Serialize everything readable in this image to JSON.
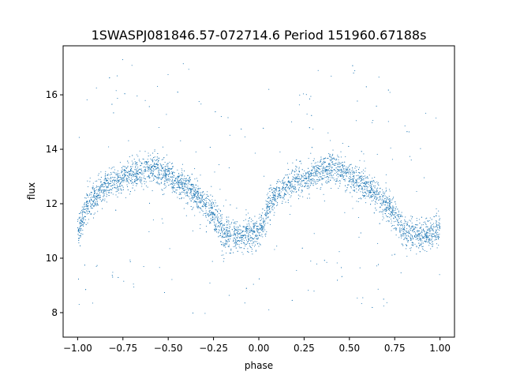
{
  "chart_data": {
    "type": "scatter",
    "title": "1SWASPJ081846.57-072714.6 Period 151960.67188s",
    "xlabel": "phase",
    "ylabel": "flux",
    "xlim": [
      -1.08,
      1.08
    ],
    "ylim": [
      7.1,
      17.8
    ],
    "x_ticks": [
      -1.0,
      -0.75,
      -0.5,
      -0.25,
      0.0,
      0.25,
      0.5,
      0.75,
      1.0
    ],
    "x_tick_labels": [
      "−1.00",
      "−0.75",
      "−0.50",
      "−0.25",
      "0.00",
      "0.25",
      "0.50",
      "0.75",
      "1.00"
    ],
    "y_ticks": [
      8,
      10,
      12,
      14,
      16
    ],
    "y_tick_labels": [
      "8",
      "10",
      "12",
      "14",
      "16"
    ],
    "grid": false,
    "legend": "none",
    "marker_color": "#1f77b4",
    "series": [
      {
        "points_description_free": true,
        "x": [
          -1.0,
          -0.95,
          -0.9,
          -0.85,
          -0.8,
          -0.75,
          -0.7,
          -0.65,
          -0.6,
          -0.55,
          -0.5,
          -0.45,
          -0.4,
          -0.35,
          -0.3,
          -0.25,
          -0.2,
          -0.17,
          -0.15,
          -0.1,
          -0.05,
          0.0,
          0.03,
          0.05,
          0.1,
          0.15,
          0.2,
          0.25,
          0.3,
          0.35,
          0.4,
          0.45,
          0.5,
          0.55,
          0.6,
          0.65,
          0.7,
          0.75,
          0.8,
          0.83,
          0.85,
          0.9,
          0.95,
          1.0
        ],
        "values": [
          10.9,
          11.9,
          12.3,
          12.6,
          12.8,
          12.9,
          13.1,
          13.2,
          13.3,
          13.2,
          13.0,
          12.8,
          12.6,
          12.3,
          12.0,
          11.6,
          11.0,
          10.9,
          10.8,
          10.8,
          10.9,
          11.0,
          11.3,
          11.9,
          12.3,
          12.6,
          12.8,
          12.9,
          13.1,
          13.2,
          13.3,
          13.2,
          13.0,
          12.8,
          12.6,
          12.3,
          12.0,
          11.6,
          11.0,
          10.9,
          10.8,
          10.8,
          10.9,
          11.1
        ]
      }
    ]
  }
}
